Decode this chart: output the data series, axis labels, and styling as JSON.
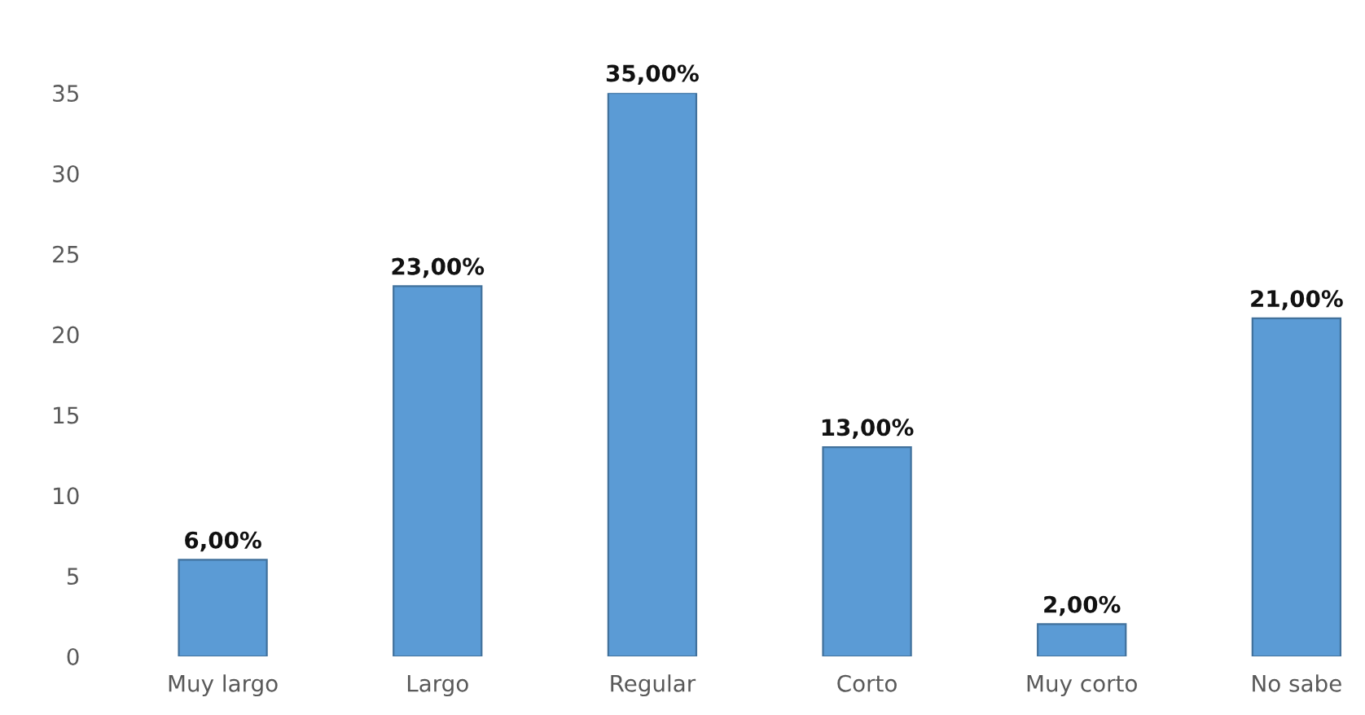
{
  "chart_data": {
    "type": "bar",
    "categories": [
      "Muy largo",
      "Largo",
      "Regular",
      "Corto",
      "Muy corto",
      "No sabe"
    ],
    "values": [
      6,
      23,
      35,
      13,
      2,
      21
    ],
    "value_labels": [
      "6,00%",
      "23,00%",
      "35,00%",
      "13,00%",
      "2,00%",
      "21,00%"
    ],
    "color": "#5b9bd5",
    "ylim": [
      0,
      35
    ],
    "yticks": [
      0,
      5,
      10,
      15,
      20,
      25,
      30,
      35
    ],
    "grid": false,
    "legend": false
  }
}
